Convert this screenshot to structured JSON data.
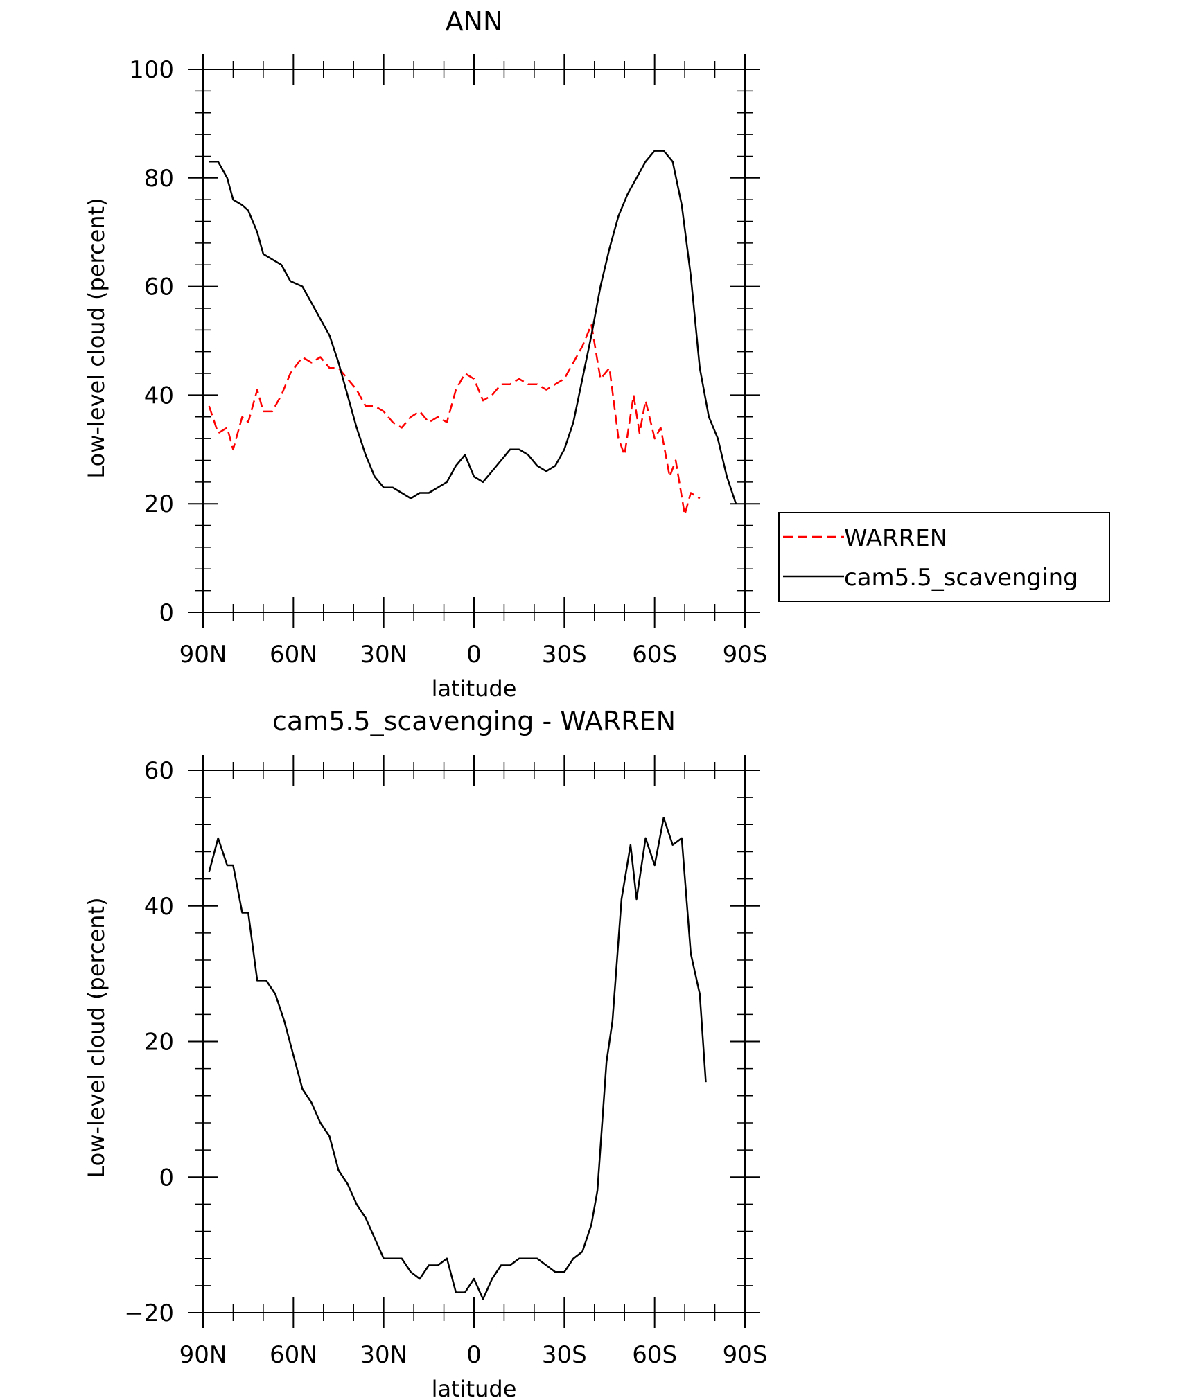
{
  "chart_data": [
    {
      "type": "line",
      "title": "ANN",
      "xlabel": "latitude",
      "ylabel": "Low-level cloud (percent)",
      "xlim": [
        90,
        -90
      ],
      "ylim": [
        0,
        100
      ],
      "x_ticks": [
        90,
        60,
        30,
        0,
        -30,
        -60,
        -90
      ],
      "x_tick_labels": [
        "90N",
        "60N",
        "30N",
        "0",
        "30S",
        "60S",
        "90S"
      ],
      "y_ticks": [
        0,
        20,
        40,
        60,
        80,
        100
      ],
      "y_tick_labels": [
        "0",
        "20",
        "40",
        "60",
        "80",
        "100"
      ],
      "legend_position": "right",
      "series": [
        {
          "name": "WARREN",
          "color": "#ff0000",
          "style": "dashed",
          "x": [
            88,
            85,
            82,
            80,
            77,
            75,
            72,
            70,
            67,
            64,
            61,
            57,
            54,
            51,
            48,
            45,
            42,
            39,
            36,
            33,
            30,
            27,
            24,
            21,
            18,
            15,
            12,
            9,
            6,
            3,
            0,
            -3,
            -6,
            -9,
            -12,
            -15,
            -18,
            -21,
            -24,
            -27,
            -30,
            -33,
            -36,
            -39,
            -42,
            -45,
            -48,
            -50,
            -53,
            -55,
            -57,
            -60,
            -62,
            -65,
            -67,
            -70,
            -72,
            -75
          ],
          "y": [
            38,
            33,
            34,
            30,
            36,
            35,
            41,
            37,
            37,
            40,
            44,
            47,
            46,
            47,
            45,
            45,
            43,
            41,
            38,
            38,
            37,
            35,
            34,
            36,
            37,
            35,
            36,
            35,
            41,
            44,
            43,
            39,
            40,
            42,
            42,
            43,
            42,
            42,
            41,
            42,
            43,
            46,
            49,
            53,
            43,
            45,
            32,
            29,
            40,
            33,
            39,
            32,
            34,
            25,
            28,
            18,
            22,
            21
          ]
        },
        {
          "name": "cam5.5_scavenging",
          "color": "#000000",
          "style": "solid",
          "x": [
            88,
            85,
            82,
            80,
            77,
            75,
            72,
            70,
            67,
            64,
            61,
            57,
            54,
            51,
            48,
            45,
            42,
            39,
            36,
            33,
            30,
            27,
            24,
            21,
            18,
            15,
            12,
            9,
            6,
            3,
            0,
            -3,
            -6,
            -9,
            -12,
            -15,
            -18,
            -21,
            -24,
            -27,
            -30,
            -33,
            -36,
            -39,
            -42,
            -45,
            -48,
            -51,
            -54,
            -57,
            -60,
            -63,
            -66,
            -69,
            -72,
            -75,
            -78,
            -81,
            -84,
            -87
          ],
          "y": [
            83,
            83,
            80,
            76,
            75,
            74,
            70,
            66,
            65,
            64,
            61,
            60,
            57,
            54,
            51,
            46,
            40,
            34,
            29,
            25,
            23,
            23,
            22,
            21,
            22,
            22,
            23,
            24,
            27,
            29,
            25,
            24,
            26,
            28,
            30,
            30,
            29,
            27,
            26,
            27,
            30,
            35,
            43,
            51,
            60,
            67,
            73,
            77,
            80,
            83,
            85,
            85,
            83,
            75,
            62,
            45,
            36,
            32,
            25,
            20
          ]
        }
      ]
    },
    {
      "type": "line",
      "title": "cam5.5_scavenging - WARREN",
      "xlabel": "latitude",
      "ylabel": "Low-level cloud (percent)",
      "xlim": [
        90,
        -90
      ],
      "ylim": [
        -20,
        60
      ],
      "x_ticks": [
        90,
        60,
        30,
        0,
        -30,
        -60,
        -90
      ],
      "x_tick_labels": [
        "90N",
        "60N",
        "30N",
        "0",
        "30S",
        "60S",
        "90S"
      ],
      "y_ticks": [
        -20,
        0,
        20,
        40,
        60
      ],
      "y_tick_labels": [
        "−20",
        "0",
        "20",
        "40",
        "60"
      ],
      "series": [
        {
          "color": "#000000",
          "style": "solid",
          "x": [
            88,
            85,
            82,
            80,
            77,
            75,
            72,
            69,
            66,
            63,
            60,
            57,
            54,
            51,
            48,
            45,
            42,
            39,
            36,
            33,
            30,
            27,
            24,
            21,
            18,
            15,
            12,
            9,
            6,
            3,
            0,
            -3,
            -6,
            -9,
            -12,
            -15,
            -18,
            -21,
            -24,
            -27,
            -30,
            -33,
            -36,
            -39,
            -41,
            -44,
            -46,
            -49,
            -52,
            -54,
            -57,
            -60,
            -63,
            -66,
            -69,
            -72,
            -75,
            -77
          ],
          "y": [
            45,
            50,
            46,
            46,
            39,
            39,
            29,
            29,
            27,
            23,
            18,
            13,
            11,
            8,
            6,
            1,
            -1,
            -4,
            -6,
            -9,
            -12,
            -12,
            -12,
            -14,
            -15,
            -13,
            -13,
            -12,
            -17,
            -17,
            -15,
            -18,
            -15,
            -13,
            -13,
            -12,
            -12,
            -12,
            -13,
            -14,
            -14,
            -12,
            -11,
            -7,
            -2,
            17,
            23,
            41,
            49,
            41,
            50,
            46,
            53,
            49,
            50,
            33,
            27,
            14
          ]
        }
      ]
    }
  ]
}
